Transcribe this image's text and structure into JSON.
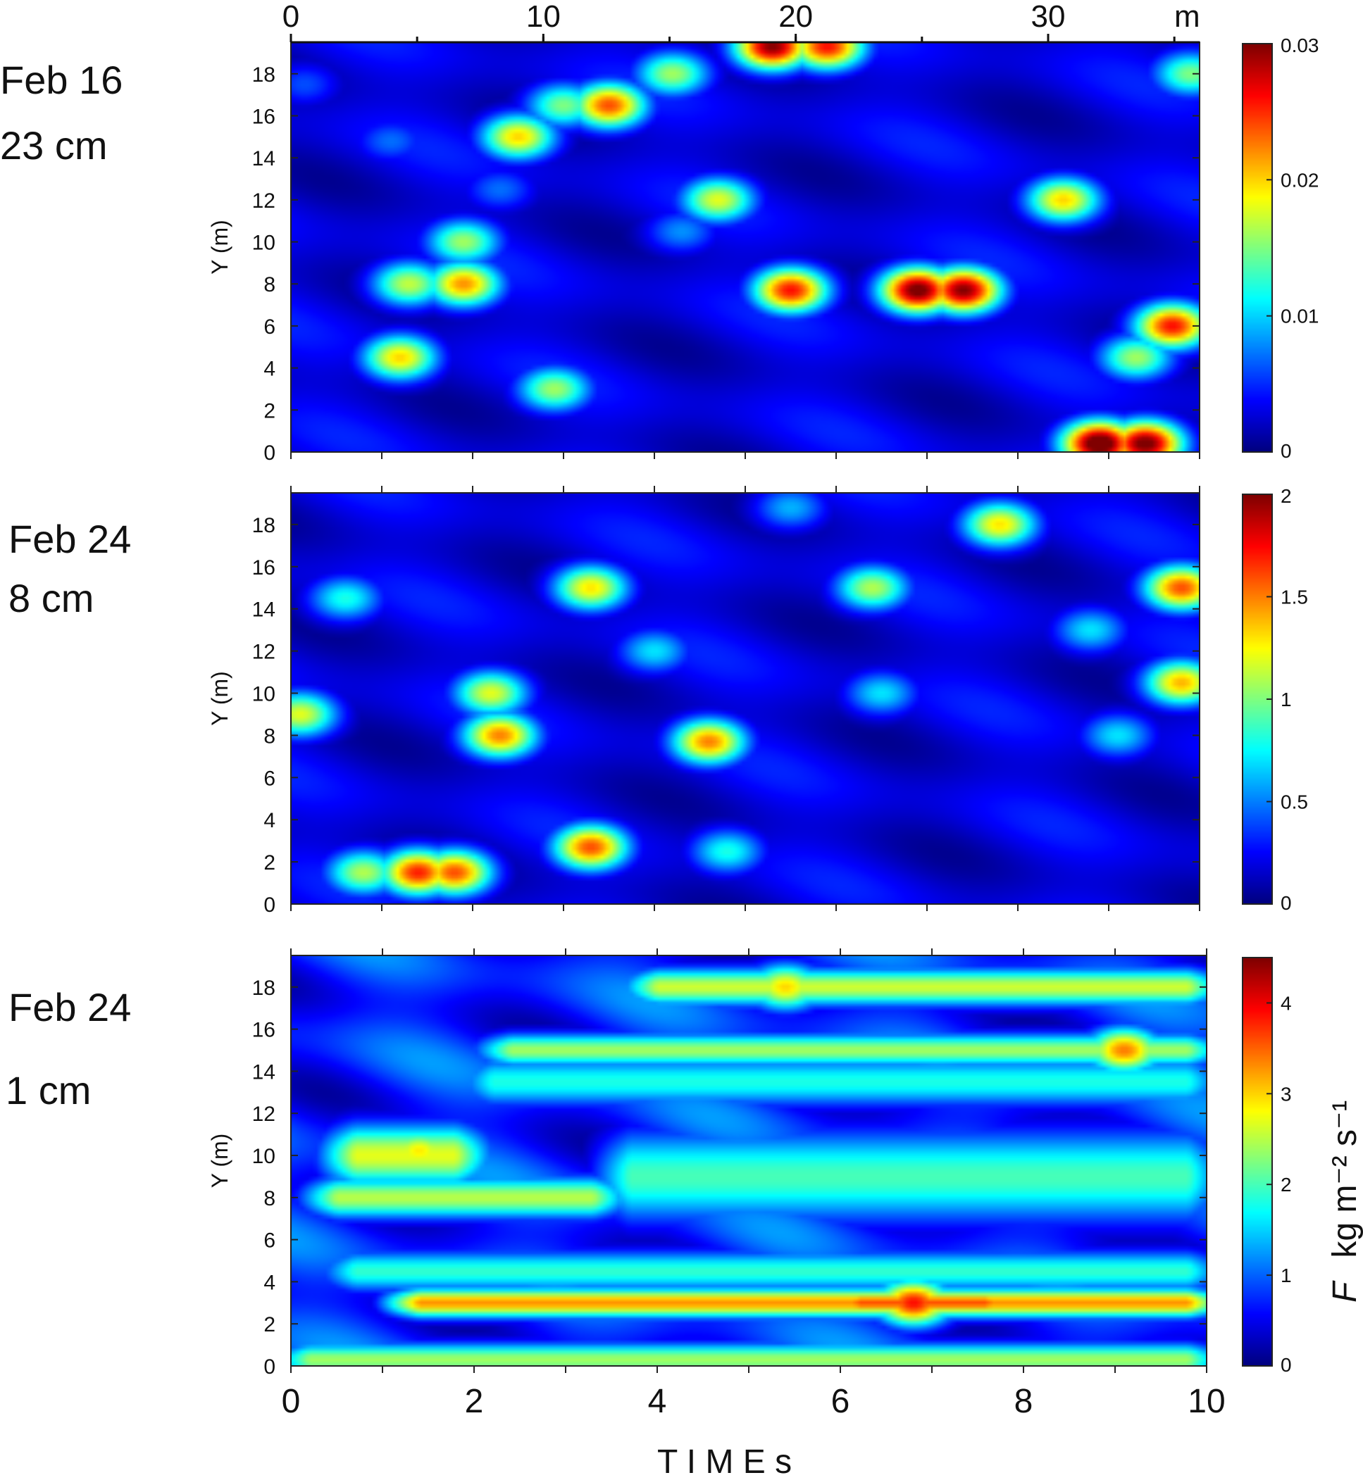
{
  "chart_data": [
    {
      "type": "heatmap",
      "panel_label": [
        "Feb 16",
        "23 cm"
      ],
      "ylabel": "Y (m)",
      "ylim": [
        0,
        19.5
      ],
      "yticks": [
        0,
        2,
        4,
        6,
        8,
        10,
        12,
        14,
        16,
        18
      ],
      "xlim": [
        0,
        10
      ],
      "x_axis_top": {
        "ticks": [
          0,
          10,
          20,
          30
        ],
        "unit": "m",
        "range": [
          0,
          36
        ]
      },
      "colorbar": {
        "range": [
          0,
          0.03
        ],
        "ticks": [
          0,
          0.01,
          0.02,
          0.03
        ],
        "tick_labels": [
          "0",
          "0.01",
          "0.02",
          "0.03"
        ],
        "colormap": "jet"
      },
      "hotspots": [
        {
          "t": 0.15,
          "y": 17.5,
          "v": 0.006
        },
        {
          "t": 1.1,
          "y": 14.8,
          "v": 0.007
        },
        {
          "t": 2.5,
          "y": 15.0,
          "v": 0.02
        },
        {
          "t": 3.5,
          "y": 16.5,
          "v": 0.024
        },
        {
          "t": 3.0,
          "y": 16.5,
          "v": 0.015
        },
        {
          "t": 4.2,
          "y": 18.0,
          "v": 0.016
        },
        {
          "t": 4.7,
          "y": 12.0,
          "v": 0.018
        },
        {
          "t": 5.3,
          "y": 19.3,
          "v": 0.03
        },
        {
          "t": 5.9,
          "y": 19.3,
          "v": 0.026
        },
        {
          "t": 1.3,
          "y": 8.0,
          "v": 0.017
        },
        {
          "t": 1.9,
          "y": 8.0,
          "v": 0.022
        },
        {
          "t": 1.9,
          "y": 10.0,
          "v": 0.016
        },
        {
          "t": 1.2,
          "y": 4.5,
          "v": 0.02
        },
        {
          "t": 2.9,
          "y": 3.0,
          "v": 0.016
        },
        {
          "t": 5.5,
          "y": 7.7,
          "v": 0.026
        },
        {
          "t": 6.9,
          "y": 7.7,
          "v": 0.031
        },
        {
          "t": 7.4,
          "y": 7.7,
          "v": 0.03
        },
        {
          "t": 8.5,
          "y": 12.0,
          "v": 0.02
        },
        {
          "t": 9.3,
          "y": 4.5,
          "v": 0.016
        },
        {
          "t": 9.7,
          "y": 6.0,
          "v": 0.026
        },
        {
          "t": 8.9,
          "y": 0.4,
          "v": 0.033
        },
        {
          "t": 9.4,
          "y": 0.4,
          "v": 0.031
        },
        {
          "t": 9.9,
          "y": 18.0,
          "v": 0.015
        },
        {
          "t": 4.3,
          "y": 10.5,
          "v": 0.008
        },
        {
          "t": 2.3,
          "y": 12.5,
          "v": 0.007
        }
      ]
    },
    {
      "type": "heatmap",
      "panel_label": [
        "Feb 24",
        "8 cm"
      ],
      "ylabel": "Y (m)",
      "ylim": [
        0,
        19.5
      ],
      "yticks": [
        0,
        2,
        4,
        6,
        8,
        10,
        12,
        14,
        16,
        18
      ],
      "xlim": [
        0,
        10
      ],
      "colorbar": {
        "range": [
          0,
          2
        ],
        "ticks": [
          0,
          0.5,
          1,
          1.5,
          2
        ],
        "tick_labels": [
          "0",
          "0.5",
          "1",
          "1.5",
          "2"
        ],
        "colormap": "jet"
      },
      "hotspots": [
        {
          "t": 0.1,
          "y": 9.0,
          "v": 1.2
        },
        {
          "t": 0.6,
          "y": 14.5,
          "v": 0.8
        },
        {
          "t": 1.4,
          "y": 1.5,
          "v": 1.7
        },
        {
          "t": 1.8,
          "y": 1.5,
          "v": 1.6
        },
        {
          "t": 0.8,
          "y": 1.5,
          "v": 1.1
        },
        {
          "t": 2.3,
          "y": 8.0,
          "v": 1.5
        },
        {
          "t": 2.2,
          "y": 10.0,
          "v": 1.2
        },
        {
          "t": 3.3,
          "y": 2.7,
          "v": 1.6
        },
        {
          "t": 3.3,
          "y": 15.0,
          "v": 1.3
        },
        {
          "t": 4.6,
          "y": 7.7,
          "v": 1.5
        },
        {
          "t": 4.0,
          "y": 12.0,
          "v": 0.7
        },
        {
          "t": 4.8,
          "y": 2.5,
          "v": 0.8
        },
        {
          "t": 6.4,
          "y": 15.0,
          "v": 1.1
        },
        {
          "t": 7.8,
          "y": 18.0,
          "v": 1.3
        },
        {
          "t": 6.5,
          "y": 10.0,
          "v": 0.7
        },
        {
          "t": 9.8,
          "y": 15.0,
          "v": 1.6
        },
        {
          "t": 9.8,
          "y": 10.5,
          "v": 1.4
        },
        {
          "t": 8.8,
          "y": 13.0,
          "v": 0.7
        },
        {
          "t": 9.1,
          "y": 8.0,
          "v": 0.7
        },
        {
          "t": 5.5,
          "y": 18.8,
          "v": 0.6
        }
      ]
    },
    {
      "type": "heatmap",
      "panel_label": [
        "Feb 24",
        "1 cm"
      ],
      "ylabel": "Y (m)",
      "ylim": [
        0,
        19.5
      ],
      "yticks": [
        0,
        2,
        4,
        6,
        8,
        10,
        12,
        14,
        16,
        18
      ],
      "xlim": [
        0,
        10
      ],
      "xticks": [
        0,
        2,
        4,
        6,
        8,
        10
      ],
      "xlabel": "T I M E s",
      "colorbar": {
        "range": [
          0,
          4.5
        ],
        "ticks": [
          0,
          1,
          2,
          3,
          4
        ],
        "tick_labels": [
          "0",
          "1",
          "2",
          "3",
          "4"
        ],
        "colormap": "jet",
        "label": "F  kg m-2 s-1"
      },
      "bands": [
        {
          "y": 3.0,
          "t0": 1.2,
          "t1": 10,
          "v": 3.3,
          "w": 0.7
        },
        {
          "y": 3.0,
          "t0": 6.0,
          "t1": 7.8,
          "v": 3.6,
          "w": 0.6
        },
        {
          "y": 15.0,
          "t0": 2.2,
          "t1": 10,
          "v": 2.4,
          "w": 0.8
        },
        {
          "y": 18.0,
          "t0": 3.8,
          "t1": 10,
          "v": 2.6,
          "w": 0.9
        },
        {
          "y": 10.0,
          "t0": 0.5,
          "t1": 2.0,
          "v": 2.7,
          "w": 1.5
        },
        {
          "y": 8.0,
          "t0": 0.3,
          "t1": 3.5,
          "v": 2.5,
          "w": 1.0
        },
        {
          "y": 9.0,
          "t0": 3.5,
          "t1": 10,
          "v": 2.0,
          "w": 2.2
        },
        {
          "y": 13.5,
          "t0": 2.0,
          "t1": 10,
          "v": 1.8,
          "w": 1.2
        },
        {
          "y": 0.3,
          "t0": 0,
          "t1": 10,
          "v": 2.4,
          "w": 0.8
        },
        {
          "y": 4.5,
          "t0": 0.5,
          "t1": 10,
          "v": 1.9,
          "w": 1.0
        }
      ],
      "hotspots": [
        {
          "t": 9.1,
          "y": 15.0,
          "v": 3.4
        },
        {
          "t": 5.4,
          "y": 18.0,
          "v": 3.0
        },
        {
          "t": 1.4,
          "y": 10.2,
          "v": 2.9
        },
        {
          "t": 6.8,
          "y": 3.0,
          "v": 3.9
        }
      ]
    }
  ]
}
